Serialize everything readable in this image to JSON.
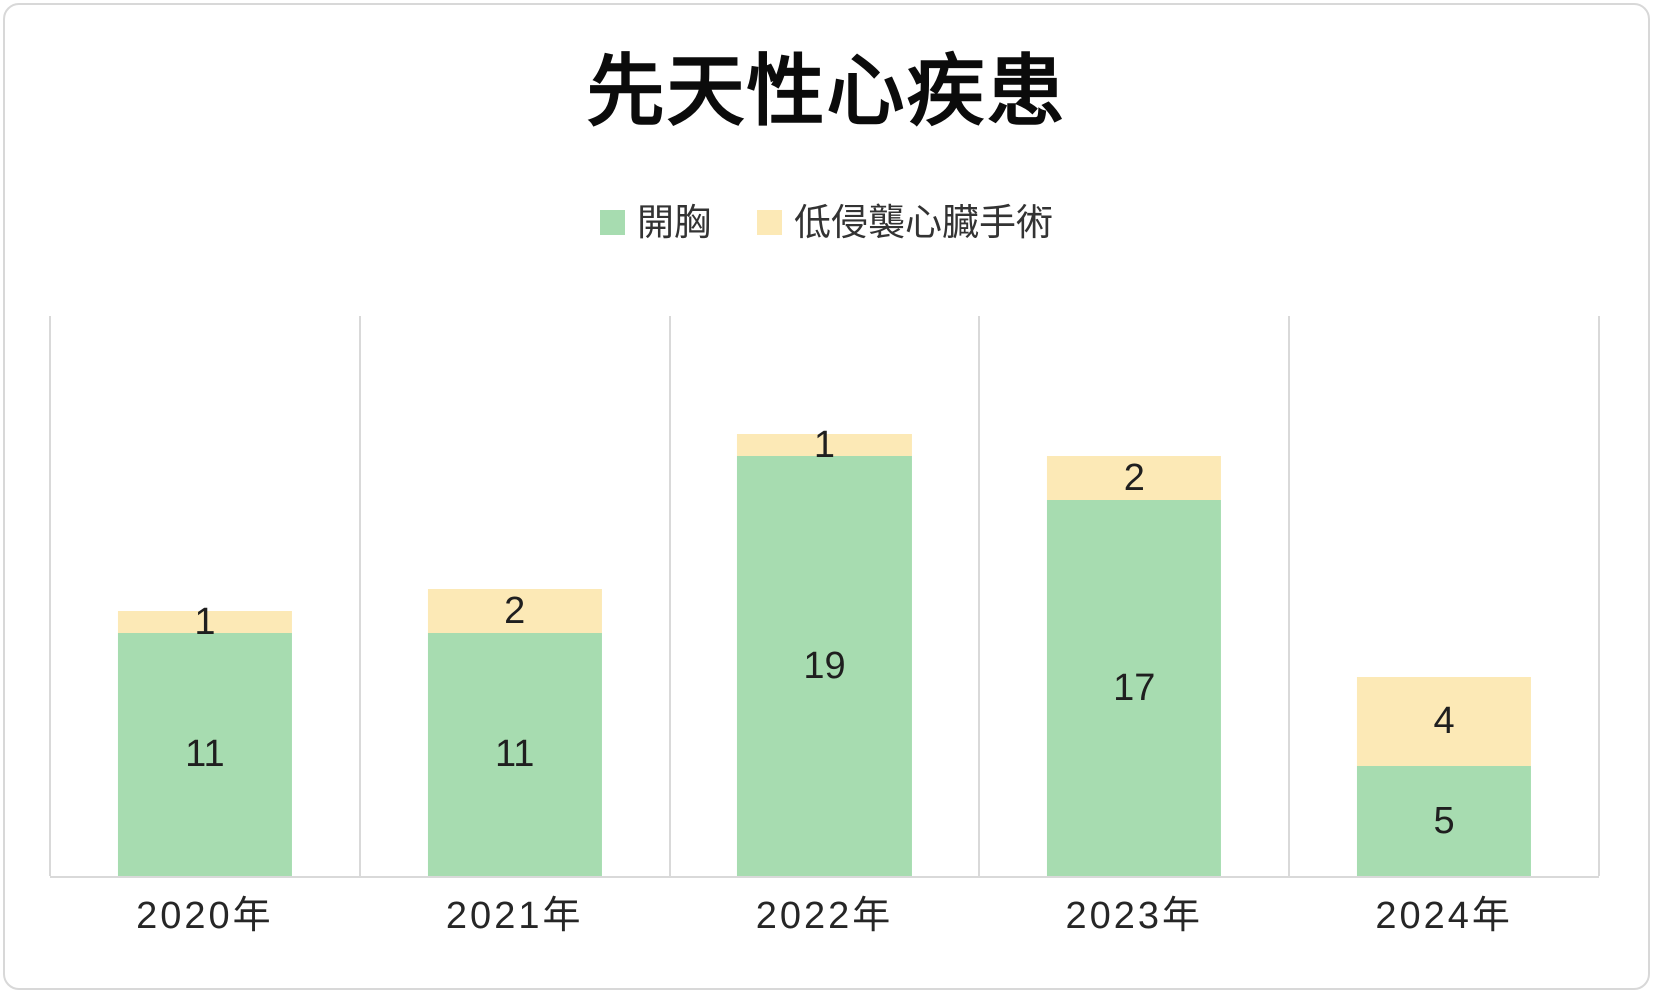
{
  "chart_data": {
    "type": "bar",
    "stacked": true,
    "title": "先天性心疾患",
    "categories": [
      "2020年",
      "2021年",
      "2022年",
      "2023年",
      "2024年"
    ],
    "series": [
      {
        "name": "開胸",
        "color": "#a7dcb0",
        "values": [
          11,
          11,
          19,
          17,
          5
        ]
      },
      {
        "name": "低侵襲心臓手術",
        "color": "#fce9b6",
        "values": [
          1,
          2,
          1,
          2,
          4
        ]
      }
    ],
    "data_labels": true,
    "xlabel": "",
    "ylabel": "",
    "ylim": [
      0,
      25
    ],
    "y_axis_visible": false,
    "grid": "vertical-category-separators",
    "gridline_color": "#d9d9d9",
    "legend_position": "top-center"
  }
}
